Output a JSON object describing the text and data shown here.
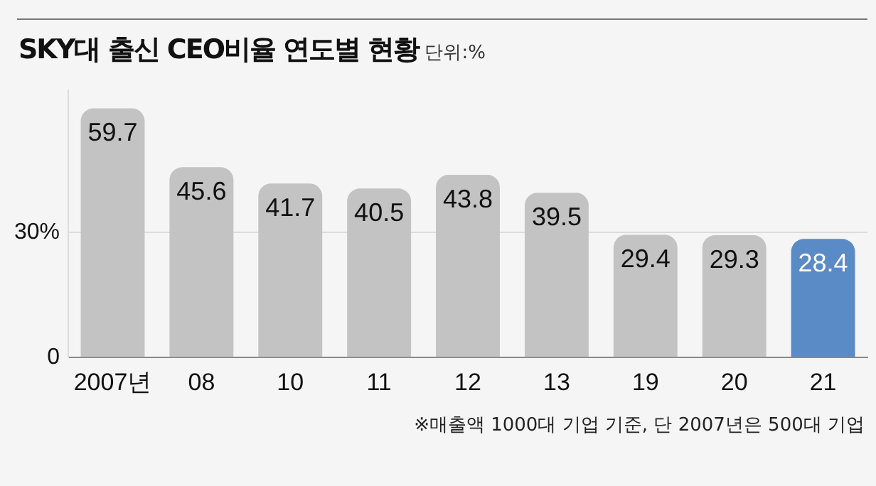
{
  "chart_data": {
    "type": "bar",
    "title": "SKY대 출신 CEO비율 연도별 현황",
    "subtitle": "단위:%",
    "categories": [
      "2007년",
      "08",
      "10",
      "11",
      "12",
      "13",
      "19",
      "20",
      "21"
    ],
    "values": [
      59.7,
      45.6,
      41.7,
      40.5,
      43.8,
      39.5,
      29.4,
      29.3,
      28.4
    ],
    "colors": [
      "#c3c3c3",
      "#c3c3c3",
      "#c3c3c3",
      "#c3c3c3",
      "#c3c3c3",
      "#c3c3c3",
      "#c3c3c3",
      "#c3c3c3",
      "#5b8bc6"
    ],
    "ylim": [
      0,
      64
    ],
    "yticks": [
      0,
      {
        "value": 30,
        "label": "30%"
      }
    ],
    "grid": "y",
    "data_labels": true,
    "legend": false,
    "annotations": [
      "※매출액 1000대 기업 기준, 단 2007년은 500대 기업"
    ]
  }
}
